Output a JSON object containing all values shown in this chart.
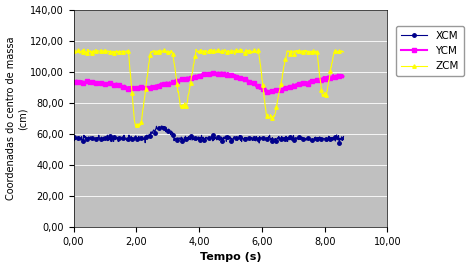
{
  "title": "",
  "xlabel": "Tempo (s)",
  "ylabel": "Coordenadas do centro de massa\n(cm)",
  "xlim": [
    0,
    10
  ],
  "ylim": [
    0,
    140
  ],
  "yticks": [
    0,
    20,
    40,
    60,
    80,
    100,
    120,
    140
  ],
  "xticks": [
    0.0,
    2.0,
    4.0,
    6.0,
    8.0,
    10.0
  ],
  "background_color": "#c0c0c0",
  "legend_entries": [
    "XCM",
    "YCM",
    "ZCM"
  ],
  "xcm_color": "#00008B",
  "ycm_color": "#FF00FF",
  "zcm_color": "#FFFF00",
  "xcm_marker": "o",
  "ycm_marker": "s",
  "zcm_marker": "^"
}
